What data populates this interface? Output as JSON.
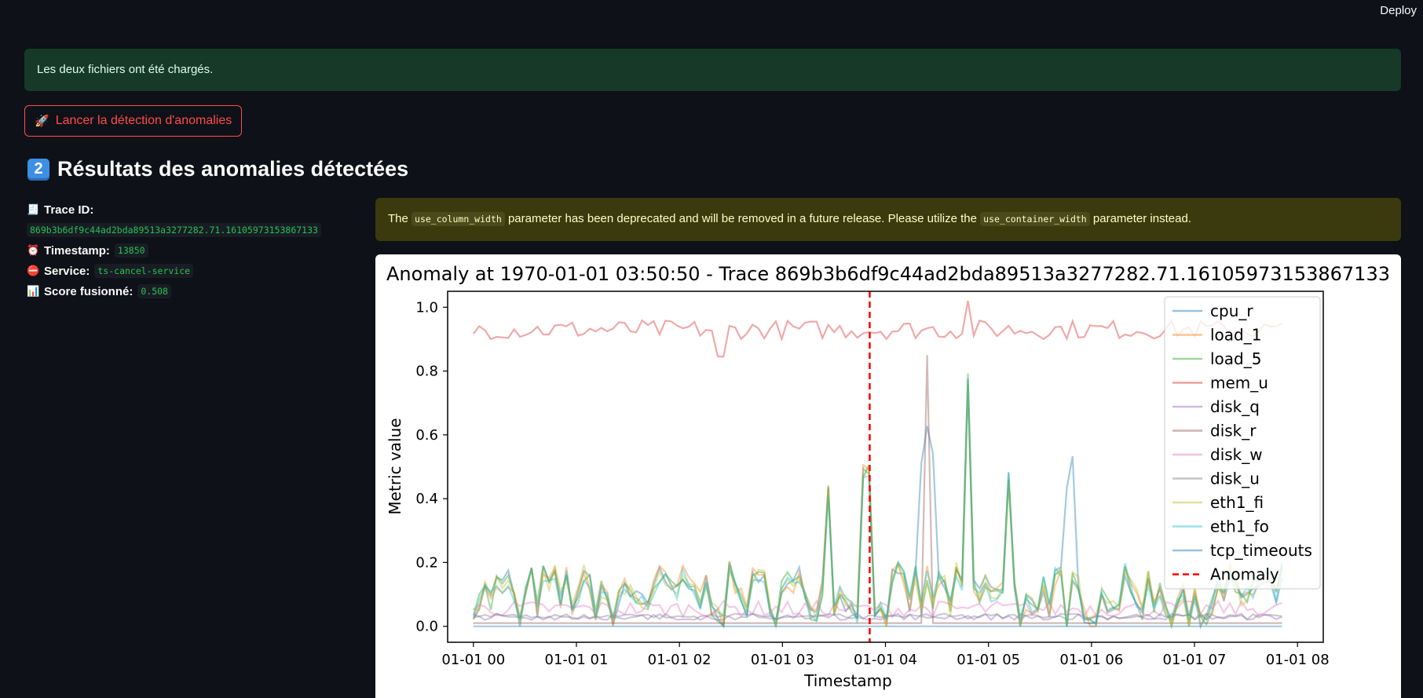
{
  "header": {
    "deploy_label": "Deploy"
  },
  "alerts": {
    "success": "Les deux fichiers ont été chargés.",
    "warning": {
      "before": "The ",
      "code1": "use_column_width",
      "middle": " parameter has been deprecated and will be removed in a future release. Please utilize the ",
      "code2": "use_container_width",
      "after": " parameter instead."
    }
  },
  "run_button": {
    "icon": "rocket-icon",
    "label": "Lancer la détection d'anomalies"
  },
  "section": {
    "number": "2",
    "title": "Résultats des anomalies détectées"
  },
  "details": {
    "trace_label": "Trace ID:",
    "trace_value": "869b3b6df9c44ad2bda89513a3277282.71.16105973153867133",
    "timestamp_label": "Timestamp:",
    "timestamp_value": "13850",
    "service_label": "Service:",
    "service_value": "ts-cancel-service",
    "score_label": "Score fusionné:",
    "score_value": "0.508"
  },
  "chart_data": {
    "type": "line",
    "title": "Anomaly at 1970-01-01 03:50:50 - Trace 869b3b6df9c44ad2bda89513a3277282.71.16105973153867133",
    "xlabel": "Timestamp",
    "ylabel": "Metric value",
    "xlim_hours": [
      -0.25,
      8.25
    ],
    "ylim": [
      -0.05,
      1.05
    ],
    "x_ticks": [
      "01-01 00",
      "01-01 01",
      "01-01 02",
      "01-01 03",
      "01-01 04",
      "01-01 05",
      "01-01 06",
      "01-01 07",
      "01-01 08"
    ],
    "y_ticks": [
      "0.0",
      "0.2",
      "0.4",
      "0.6",
      "0.8",
      "1.0"
    ],
    "anomaly_hour": 3.847,
    "legend_position": "upper right",
    "series": [
      {
        "name": "cpu_r",
        "color": "#1f77b4"
      },
      {
        "name": "load_1",
        "color": "#ff7f0e"
      },
      {
        "name": "load_5",
        "color": "#2ca02c"
      },
      {
        "name": "mem_u",
        "color": "#d62728"
      },
      {
        "name": "disk_q",
        "color": "#9467bd"
      },
      {
        "name": "disk_r",
        "color": "#8c564b"
      },
      {
        "name": "disk_w",
        "color": "#e377c2"
      },
      {
        "name": "disk_u",
        "color": "#7f7f7f"
      },
      {
        "name": "eth1_fi",
        "color": "#bcbd22"
      },
      {
        "name": "eth1_fo",
        "color": "#17becf"
      },
      {
        "name": "tcp_timeouts",
        "color": "#1f77b4"
      },
      {
        "name": "Anomaly",
        "color": "#ff0000",
        "style": "dashed"
      }
    ]
  }
}
